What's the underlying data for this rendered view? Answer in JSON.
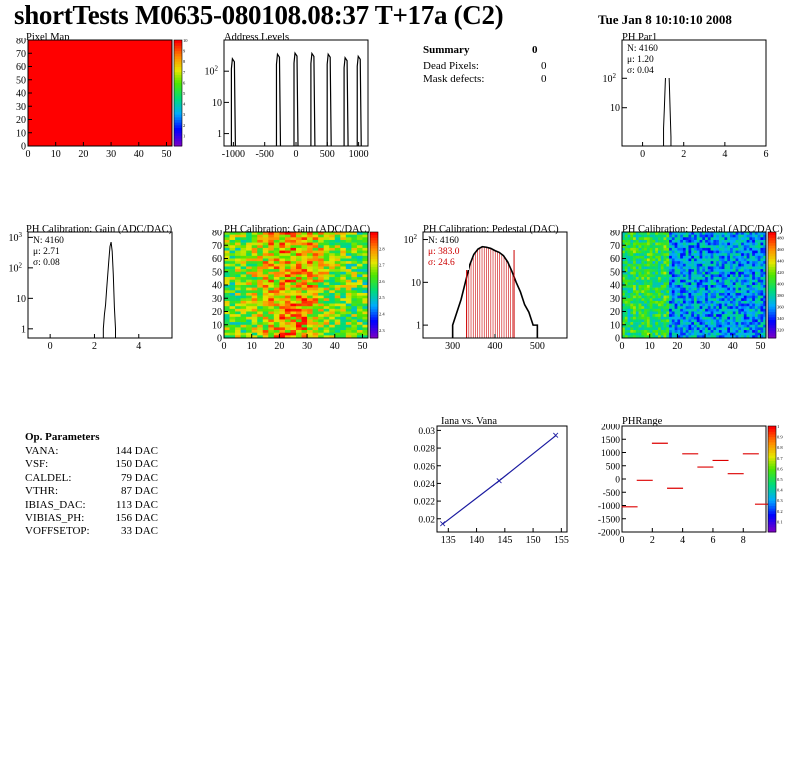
{
  "header": {
    "title": "shortTests M0635-080108.08:37 T+17a (C2)",
    "date": "Tue Jan  8 10:10:10 2008"
  },
  "summary": {
    "title": "Summary",
    "title_value": "0",
    "rows": [
      {
        "label": "Dead Pixels:",
        "value": "0"
      },
      {
        "label": "Mask defects:",
        "value": "0"
      }
    ]
  },
  "op_params": {
    "title": "Op. Parameters",
    "rows": [
      {
        "name": "VANA:",
        "value": "144 DAC"
      },
      {
        "name": "VSF:",
        "value": "150 DAC"
      },
      {
        "name": "CALDEL:",
        "value": "79 DAC"
      },
      {
        "name": "VTHR:",
        "value": "87 DAC"
      },
      {
        "name": "IBIAS_DAC:",
        "value": "113 DAC"
      },
      {
        "name": "VIBIAS_PH:",
        "value": "156 DAC"
      },
      {
        "name": "VOFFSETOP:",
        "value": "33 DAC"
      }
    ]
  },
  "chart_data": [
    {
      "id": "pixel-map",
      "type": "heatmap",
      "title": "Pixel Map",
      "xlim": [
        0,
        52
      ],
      "ylim": [
        0,
        80
      ],
      "xticks": [
        0,
        10,
        20,
        30,
        40,
        50
      ],
      "yticks": [
        0,
        10,
        20,
        30,
        40,
        50,
        60,
        70,
        80
      ],
      "zticks": [
        1,
        2,
        3,
        4,
        5,
        6,
        7,
        8,
        9,
        10
      ],
      "fill_color": "#ff0000",
      "uniform_value": 10
    },
    {
      "id": "address-levels",
      "type": "bar",
      "title": "Address Levels",
      "log_y": true,
      "xlim": [
        -1150,
        1150
      ],
      "xticks": [
        -1000,
        -500,
        0,
        500,
        1000
      ],
      "yticks": [
        1,
        10,
        100
      ],
      "peaks": [
        {
          "x": -1000,
          "height": 250
        },
        {
          "x": -280,
          "height": 350
        },
        {
          "x": 0,
          "height": 380
        },
        {
          "x": 270,
          "height": 370
        },
        {
          "x": 530,
          "height": 350
        },
        {
          "x": 800,
          "height": 270
        },
        {
          "x": 1010,
          "height": 300
        }
      ]
    },
    {
      "id": "ph-par1",
      "type": "line",
      "title": "PH Par1",
      "log_y": true,
      "xlim": [
        -1,
        6
      ],
      "xticks": [
        0,
        2,
        4,
        6
      ],
      "yticks": [
        10,
        100
      ],
      "stats": {
        "n": "N: 4160",
        "mean": "μ: 1.20",
        "sigma": "σ: 0.04"
      },
      "x": [
        1.02,
        1.06,
        1.1,
        1.14,
        1.18,
        1.22,
        1.26,
        1.3,
        1.34,
        1.38
      ],
      "y": [
        2,
        10,
        60,
        300,
        850,
        900,
        400,
        70,
        8,
        1
      ]
    },
    {
      "id": "ph-gain-hist",
      "type": "line",
      "title": "PH Calibration: Gain (ADC/DAC)",
      "log_y": true,
      "xlim": [
        -1,
        5.5
      ],
      "xticks": [
        0,
        2,
        4
      ],
      "yticks": [
        1,
        10,
        100,
        1000
      ],
      "stats": {
        "n": "N: 4160",
        "mean": "μ: 2.71",
        "sigma": "σ: 0.08"
      },
      "x": [
        2.4,
        2.45,
        2.5,
        2.55,
        2.6,
        2.65,
        2.7,
        2.75,
        2.8,
        2.85,
        2.9,
        2.95
      ],
      "y": [
        1,
        3,
        6,
        20,
        60,
        180,
        500,
        700,
        350,
        60,
        5,
        1
      ]
    },
    {
      "id": "ph-gain-map",
      "type": "heatmap",
      "title": "PH Calibration: Gain (ADC/DAC)",
      "xlim": [
        0,
        52
      ],
      "ylim": [
        0,
        80
      ],
      "xticks": [
        0,
        10,
        20,
        30,
        40,
        50
      ],
      "yticks": [
        0,
        10,
        20,
        30,
        40,
        50,
        60,
        70,
        80
      ],
      "zticks": [
        2.3,
        2.4,
        2.5,
        2.6,
        2.7,
        2.8
      ],
      "zlim": [
        2.25,
        2.9
      ]
    },
    {
      "id": "ph-pedestal-hist",
      "type": "line",
      "title": "PH Calibration: Pedestal (DAC)",
      "log_y": true,
      "xlim": [
        230,
        570
      ],
      "xticks": [
        300,
        400,
        500
      ],
      "yticks": [
        1,
        10,
        100
      ],
      "stats": {
        "n": "N: 4160",
        "mean": "μ: 383.0",
        "sigma": "σ: 24.6"
      },
      "cut_lines": [
        333,
        445
      ],
      "x": [
        300,
        310,
        320,
        330,
        340,
        350,
        360,
        370,
        380,
        390,
        400,
        410,
        420,
        430,
        440,
        450,
        460,
        470,
        480,
        490,
        500
      ],
      "y": [
        1,
        2,
        4,
        10,
        25,
        45,
        60,
        68,
        66,
        62,
        55,
        50,
        42,
        30,
        18,
        10,
        6,
        3,
        2,
        1,
        1
      ]
    },
    {
      "id": "ph-pedestal-map",
      "type": "heatmap",
      "title": "PH Calibration: Pedestal (ADC/DAC)",
      "xlim": [
        0,
        52
      ],
      "ylim": [
        0,
        80
      ],
      "xticks": [
        0,
        10,
        20,
        30,
        40,
        50
      ],
      "yticks": [
        0,
        10,
        20,
        30,
        40,
        50,
        60,
        70,
        80
      ],
      "zticks": [
        320,
        340,
        360,
        380,
        400,
        420,
        440,
        460,
        480
      ],
      "zlim": [
        305,
        490
      ]
    },
    {
      "id": "iana-vana",
      "type": "line",
      "title": "Iana vs. Vana",
      "xlim": [
        133,
        156
      ],
      "ylim": [
        0.0185,
        0.0305
      ],
      "xticks": [
        135,
        140,
        145,
        150,
        155
      ],
      "yticks": [
        0.02,
        0.022,
        0.024,
        0.026,
        0.028,
        0.03
      ],
      "x": [
        134,
        144,
        154
      ],
      "y": [
        0.0194,
        0.0243,
        0.0294
      ]
    },
    {
      "id": "ph-range",
      "type": "scatter",
      "title": "PHRange",
      "xlim": [
        0,
        9.5
      ],
      "ylim": [
        -2000,
        2000
      ],
      "xticks": [
        0,
        2,
        4,
        6,
        8
      ],
      "yticks": [
        -2000,
        -1500,
        -1000,
        -500,
        0,
        500,
        1000,
        1500,
        2000
      ],
      "zticks": [
        0.1,
        0.2,
        0.3,
        0.4,
        0.5,
        0.6,
        0.7,
        0.8,
        0.9,
        1
      ],
      "x": [
        0.5,
        1.5,
        2.5,
        3.5,
        4.5,
        5.5,
        6.5,
        7.5,
        8.5,
        9.3
      ],
      "y": [
        -1050,
        -50,
        1350,
        -350,
        950,
        450,
        700,
        200,
        950,
        -950
      ]
    }
  ]
}
